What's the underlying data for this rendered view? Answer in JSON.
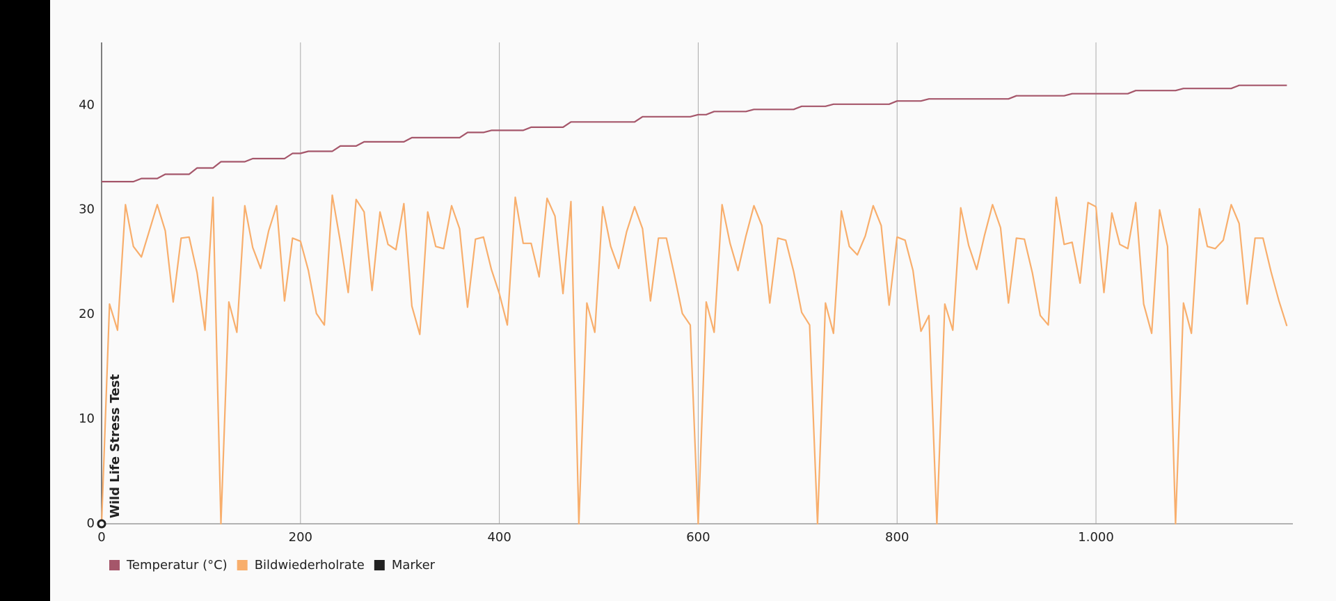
{
  "chart_data": {
    "type": "line",
    "x": [
      0,
      8,
      16,
      24,
      32,
      40,
      48,
      56,
      64,
      72,
      80,
      88,
      96,
      104,
      112,
      120,
      128,
      136,
      144,
      152,
      160,
      168,
      176,
      184,
      192,
      200,
      208,
      216,
      224,
      232,
      240,
      248,
      256,
      264,
      272,
      280,
      288,
      296,
      304,
      312,
      320,
      328,
      336,
      344,
      352,
      360,
      368,
      376,
      384,
      392,
      400,
      408,
      416,
      424,
      432,
      440,
      448,
      456,
      464,
      472,
      480,
      488,
      496,
      504,
      512,
      520,
      528,
      536,
      544,
      552,
      560,
      568,
      576,
      584,
      592,
      600,
      608,
      616,
      624,
      632,
      640,
      648,
      656,
      664,
      672,
      680,
      688,
      696,
      704,
      712,
      720,
      728,
      736,
      744,
      752,
      760,
      768,
      776,
      784,
      792,
      800,
      808,
      816,
      824,
      832,
      840,
      848,
      856,
      864,
      872,
      880,
      888,
      896,
      904,
      912,
      920,
      928,
      936,
      944,
      952,
      960,
      968,
      976,
      984,
      992,
      1000,
      1008,
      1016,
      1024,
      1032,
      1040,
      1048,
      1056,
      1064,
      1072,
      1080,
      1088,
      1096,
      1104,
      1112,
      1120,
      1128,
      1136,
      1144,
      1152,
      1160,
      1168,
      1176,
      1184,
      1192
    ],
    "series": [
      {
        "name": "Temperatur (°C)",
        "color": "#a5566a",
        "values": [
          32.7,
          32.7,
          32.7,
          32.7,
          32.7,
          33.0,
          33.0,
          33.0,
          33.4,
          33.4,
          33.4,
          33.4,
          34.0,
          34.0,
          34.0,
          34.6,
          34.6,
          34.6,
          34.6,
          34.9,
          34.9,
          34.9,
          34.9,
          34.9,
          35.4,
          35.4,
          35.6,
          35.6,
          35.6,
          35.6,
          36.1,
          36.1,
          36.1,
          36.5,
          36.5,
          36.5,
          36.5,
          36.5,
          36.5,
          36.9,
          36.9,
          36.9,
          36.9,
          36.9,
          36.9,
          36.9,
          37.4,
          37.4,
          37.4,
          37.6,
          37.6,
          37.6,
          37.6,
          37.6,
          37.9,
          37.9,
          37.9,
          37.9,
          37.9,
          38.4,
          38.4,
          38.4,
          38.4,
          38.4,
          38.4,
          38.4,
          38.4,
          38.4,
          38.9,
          38.9,
          38.9,
          38.9,
          38.9,
          38.9,
          38.9,
          39.1,
          39.1,
          39.4,
          39.4,
          39.4,
          39.4,
          39.4,
          39.6,
          39.6,
          39.6,
          39.6,
          39.6,
          39.6,
          39.9,
          39.9,
          39.9,
          39.9,
          40.1,
          40.1,
          40.1,
          40.1,
          40.1,
          40.1,
          40.1,
          40.1,
          40.4,
          40.4,
          40.4,
          40.4,
          40.6,
          40.6,
          40.6,
          40.6,
          40.6,
          40.6,
          40.6,
          40.6,
          40.6,
          40.6,
          40.6,
          40.9,
          40.9,
          40.9,
          40.9,
          40.9,
          40.9,
          40.9,
          41.1,
          41.1,
          41.1,
          41.1,
          41.1,
          41.1,
          41.1,
          41.1,
          41.4,
          41.4,
          41.4,
          41.4,
          41.4,
          41.4,
          41.6,
          41.6,
          41.6,
          41.6,
          41.6,
          41.6,
          41.6,
          41.9,
          41.9,
          41.9,
          41.9,
          41.9,
          41.9,
          41.9
        ]
      },
      {
        "name": "Bildwiederholrate",
        "color": "#f8ae6c",
        "values": [
          0,
          21,
          18.5,
          30.5,
          26.5,
          25.5,
          28,
          30.5,
          28,
          21.2,
          27.3,
          27.4,
          24,
          18.5,
          31.2,
          0,
          21.2,
          18.3,
          30.4,
          26.4,
          24.4,
          28,
          30.4,
          21.3,
          27.3,
          27,
          24.2,
          20.1,
          19,
          31.4,
          27,
          22.1,
          31,
          29.8,
          22.3,
          29.8,
          26.7,
          26.2,
          30.6,
          20.8,
          18.1,
          29.8,
          26.5,
          26.3,
          30.4,
          28.2,
          20.7,
          27.2,
          27.4,
          24.3,
          22,
          19,
          31.2,
          26.8,
          26.8,
          23.6,
          31.1,
          29.4,
          22,
          30.8,
          0,
          21.1,
          18.3,
          30.3,
          26.5,
          24.4,
          27.9,
          30.3,
          28.2,
          21.3,
          27.3,
          27.3,
          23.8,
          20.1,
          19,
          0,
          21.2,
          18.3,
          30.5,
          26.8,
          24.2,
          27.5,
          30.4,
          28.5,
          21.1,
          27.3,
          27.1,
          24.1,
          20.2,
          19,
          0,
          21.1,
          18.2,
          29.9,
          26.5,
          25.7,
          27.5,
          30.4,
          28.5,
          20.9,
          27.4,
          27.1,
          24.2,
          18.4,
          19.9,
          0,
          21,
          18.5,
          30.2,
          26.6,
          24.3,
          27.6,
          30.5,
          28.3,
          21.1,
          27.3,
          27.2,
          24,
          19.9,
          19,
          31.2,
          26.7,
          26.9,
          23,
          30.7,
          30.3,
          22.1,
          29.7,
          26.7,
          26.3,
          30.7,
          21,
          18.2,
          30,
          26.5,
          0,
          21.1,
          18.2,
          30.1,
          26.5,
          26.3,
          27.1,
          30.5,
          28.7,
          21,
          27.3,
          27.3,
          24.1,
          21.3,
          18.9
        ]
      },
      {
        "name": "Marker",
        "color": "#222222",
        "markers": [
          {
            "x": 0,
            "label": "Wild Life Stress Test"
          }
        ]
      }
    ],
    "xlim": [
      0,
      1198
    ],
    "ylim": [
      0,
      46
    ],
    "xticks": [
      0,
      200,
      400,
      600,
      800,
      {
        "value": 1000,
        "label": "1.000"
      }
    ],
    "yticks": [
      0,
      10,
      20,
      30,
      40
    ],
    "grid": "x",
    "legend": "bottom-left"
  }
}
